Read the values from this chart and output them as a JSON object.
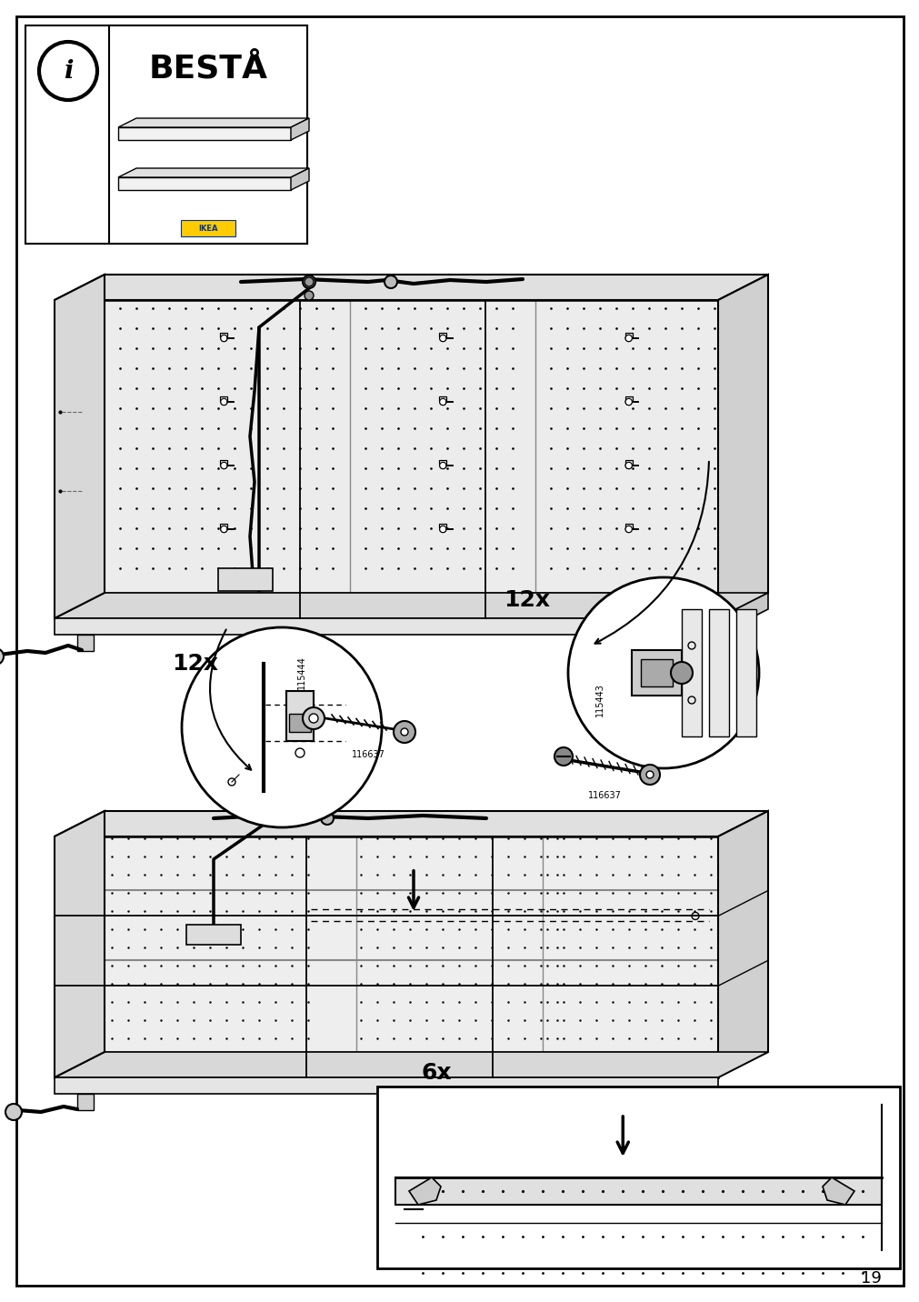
{
  "page_number": "19",
  "bg": "#ffffff",
  "border": "#000000",
  "title": "BESTÅ",
  "qty_12x_1": "12x",
  "qty_12x_2": "12x",
  "qty_6x": "6x",
  "code_115444": "115444",
  "code_116637a": "116637",
  "code_115443": "115443",
  "code_116637b": "116637"
}
